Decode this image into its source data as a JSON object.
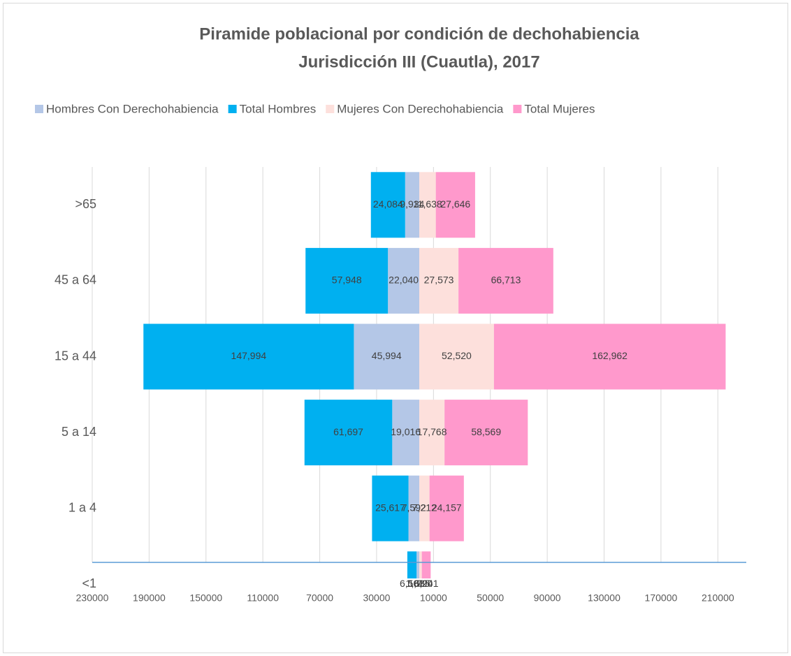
{
  "chart_data": {
    "type": "bar",
    "orientation": "horizontal",
    "stacked": true,
    "title": "Piramide poblacional por condición de dechohabiencia",
    "subtitle": "Jurisdicción III (Cuautla), 2017",
    "categories": [
      ">65",
      "45 a 64",
      "15 a 44",
      "5 a 14",
      "1 a 4",
      "<1"
    ],
    "series": [
      {
        "name": "Hombres Con Derechohabiencia",
        "color": "#b4c7e7",
        "values": [
          -9934,
          -22040,
          -45994,
          -19016,
          -7592,
          -1885
        ],
        "value_labels": [
          "9,934",
          "22,040",
          "45,994",
          "19,016",
          "7,592",
          "1,885"
        ]
      },
      {
        "name": "Total Hombres",
        "color": "#00b0f0",
        "values": [
          -24084,
          -57948,
          -147994,
          -61697,
          -25617,
          -6501
        ],
        "value_labels": [
          "24,084",
          "57,948",
          "147,994",
          "61,697",
          "25,617",
          "6,501"
        ]
      },
      {
        "name": "Mujeres Con Derechohabiencia",
        "color": "#fde0dc",
        "values": [
          11638,
          27573,
          52520,
          17768,
          7212,
          1790
        ],
        "value_labels": [
          "11,638",
          "27,573",
          "52,520",
          "17,768",
          "7,212",
          "1,790"
        ]
      },
      {
        "name": "Total Mujeres",
        "color": "#ff99cc",
        "values": [
          27646,
          66713,
          162962,
          58569,
          24157,
          6241
        ],
        "value_labels": [
          "27,646",
          "66,713",
          "162,962",
          "58,569",
          "24,157",
          "6,241"
        ]
      }
    ],
    "xlim": [
      -230000,
      230000
    ],
    "xticks": [
      {
        "value": -230000,
        "label": "230000"
      },
      {
        "value": -190000,
        "label": "190000"
      },
      {
        "value": -150000,
        "label": "150000"
      },
      {
        "value": -110000,
        "label": "110000"
      },
      {
        "value": -70000,
        "label": "70000"
      },
      {
        "value": -30000,
        "label": "30000"
      },
      10000,
      50000,
      90000,
      130000,
      170000,
      210000
    ],
    "grid": true,
    "legend": "top"
  }
}
